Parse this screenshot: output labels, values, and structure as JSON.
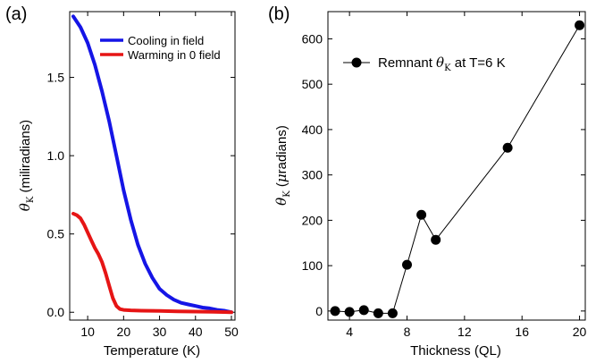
{
  "chart_data": [
    {
      "panel": "(a)",
      "type": "line",
      "xlabel": "Temperature (K)",
      "ylabel": {
        "symbol": "θ",
        "sub": "K",
        "text": " (miliradians)"
      },
      "xlim": [
        5,
        51
      ],
      "ylim": [
        -0.05,
        1.92
      ],
      "xticks": [
        10,
        20,
        30,
        40,
        50
      ],
      "yticks": [
        0.0,
        0.5,
        1.0,
        1.5
      ],
      "ytick_labels": [
        "0.0",
        "0.5",
        "1.0",
        "1.5"
      ],
      "grid": false,
      "legend_position": "top-right",
      "series": [
        {
          "name": "Cooling in field",
          "color": "#1515e6",
          "x": [
            6,
            8,
            10,
            12,
            14,
            16,
            18,
            20,
            22,
            24,
            26,
            28,
            30,
            32,
            34,
            36,
            38,
            40,
            42,
            44,
            46,
            48,
            50
          ],
          "y": [
            1.89,
            1.82,
            1.72,
            1.58,
            1.41,
            1.22,
            1.0,
            0.78,
            0.59,
            0.43,
            0.31,
            0.22,
            0.15,
            0.11,
            0.08,
            0.06,
            0.05,
            0.04,
            0.03,
            0.025,
            0.015,
            0.01,
            0.0
          ]
        },
        {
          "name": "Warming in 0 field",
          "color": "#e61515",
          "x": [
            6,
            7,
            8,
            9,
            10,
            11,
            12,
            13,
            14,
            15,
            16,
            17,
            18,
            19,
            20,
            22,
            25,
            30,
            35,
            40,
            45,
            50
          ],
          "y": [
            0.63,
            0.62,
            0.6,
            0.56,
            0.51,
            0.46,
            0.41,
            0.37,
            0.32,
            0.25,
            0.17,
            0.09,
            0.04,
            0.02,
            0.015,
            0.012,
            0.01,
            0.008,
            0.006,
            0.004,
            0.003,
            0.0
          ]
        }
      ]
    },
    {
      "panel": "(b)",
      "type": "line",
      "xlabel": "Thickness (QL)",
      "ylabel": {
        "symbol": "θ",
        "sub": "K",
        "pre": " (",
        "mu": "μ",
        "text": "radians)"
      },
      "xlim": [
        2.5,
        20.4
      ],
      "ylim": [
        -20,
        660
      ],
      "xticks": [
        4,
        8,
        12,
        16,
        20
      ],
      "yticks": [
        0,
        100,
        200,
        300,
        400,
        500,
        600
      ],
      "grid": false,
      "legend_position": "top-left",
      "series": [
        {
          "name": {
            "pre": "Remnant ",
            "symbol": "θ",
            "sub": "K",
            "post": " at T=6 K"
          },
          "color": "#000000",
          "marker": "circle",
          "x": [
            3,
            4,
            5,
            6,
            7,
            8,
            9,
            10,
            15,
            20
          ],
          "y": [
            0,
            -2,
            2,
            -5,
            -5,
            102,
            212,
            157,
            360,
            630
          ]
        }
      ]
    }
  ]
}
